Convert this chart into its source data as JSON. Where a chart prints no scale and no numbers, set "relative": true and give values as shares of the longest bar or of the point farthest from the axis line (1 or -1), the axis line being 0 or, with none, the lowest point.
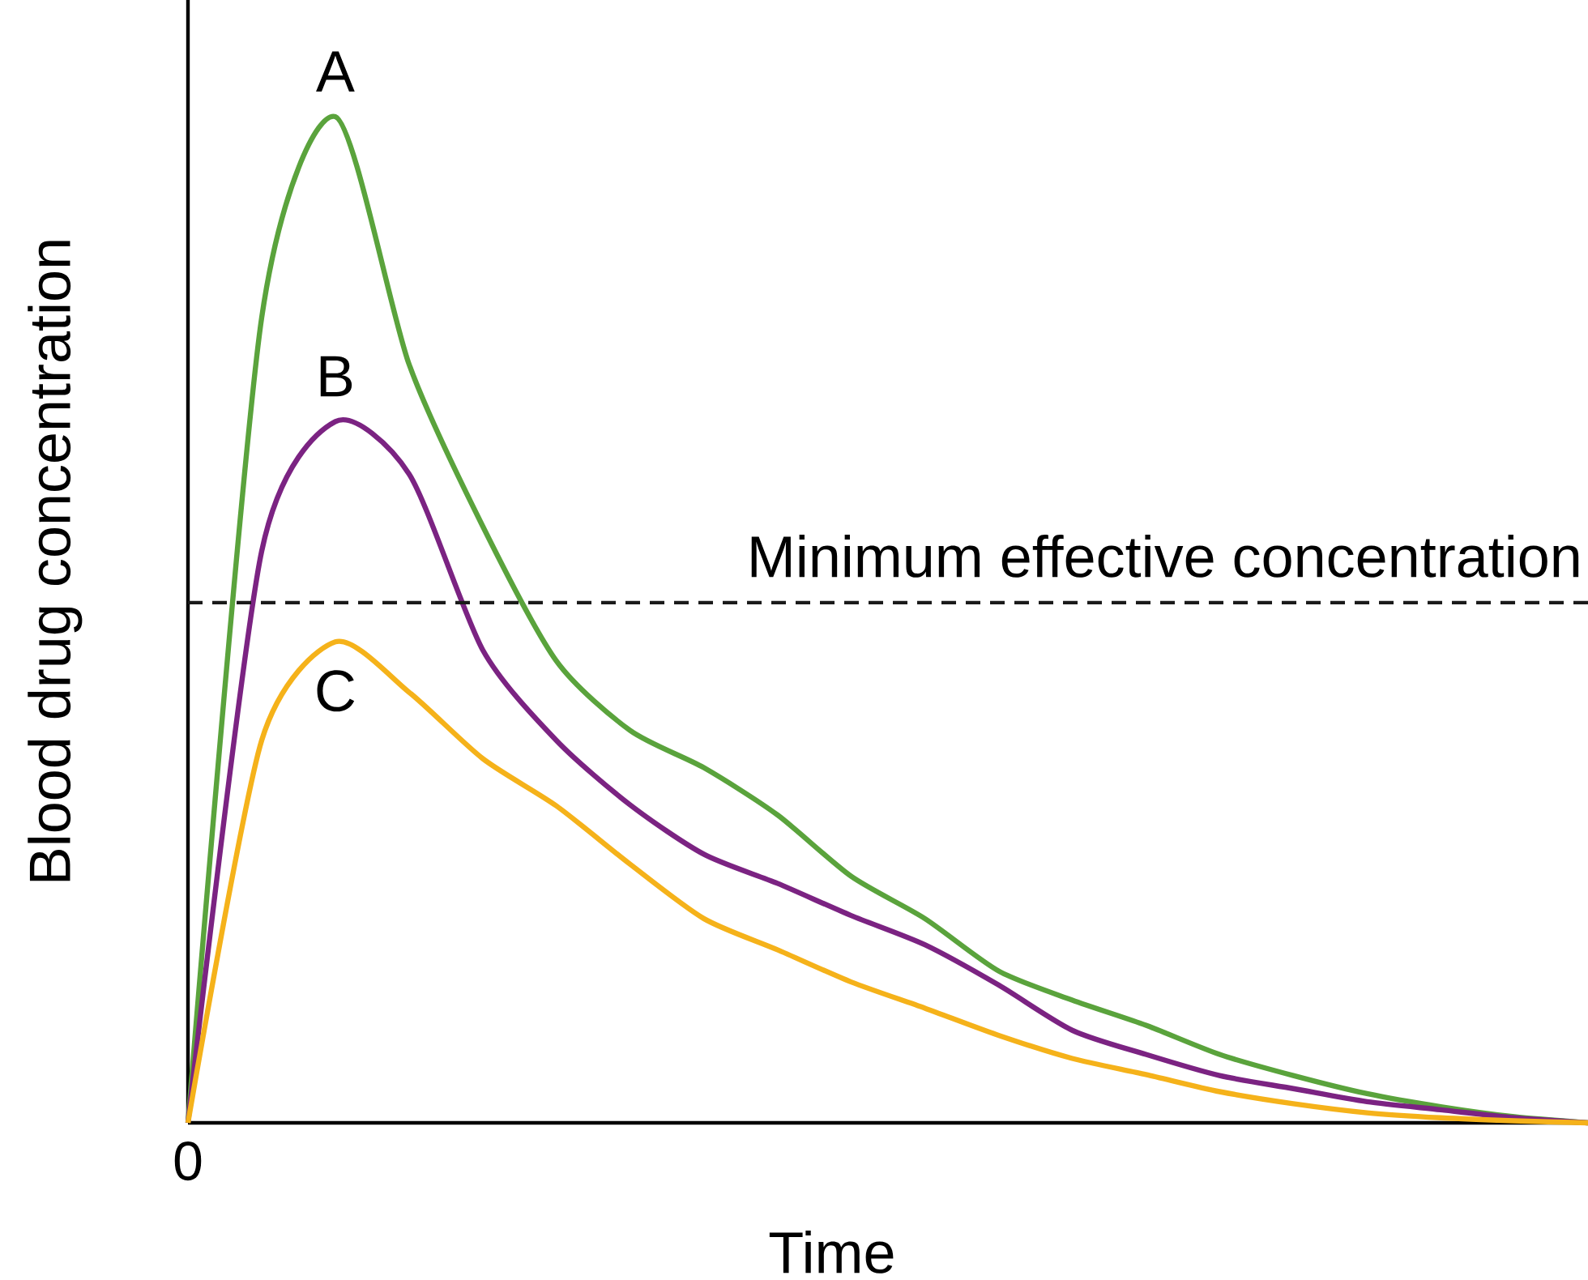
{
  "chart_data": {
    "type": "line",
    "relative": true,
    "xlabel": "Time",
    "ylabel": "Blood drug concentration",
    "marker": "none",
    "annotations": [
      "0"
    ],
    "categories": [
      null,
      null,
      null,
      null,
      null,
      null,
      null,
      null,
      null,
      null,
      null,
      null,
      null,
      null,
      null,
      null,
      null,
      null,
      null,
      null
    ],
    "series": [
      {
        "name": "A",
        "color": "#5aa33c",
        "values": [
          0,
          0.8,
          1.0,
          0.754,
          0.593,
          0.459,
          0.39,
          0.353,
          0.306,
          0.245,
          0.203,
          0.151,
          0.122,
          0.097,
          0.068,
          0.047,
          0.029,
          0.016,
          0.006,
          0
        ]
      },
      {
        "name": "B",
        "color": "#7b2382",
        "values": [
          0,
          0.568,
          0.697,
          0.645,
          0.47,
          0.38,
          0.316,
          0.267,
          0.238,
          0.206,
          0.177,
          0.137,
          0.092,
          0.068,
          0.047,
          0.034,
          0.021,
          0.013,
          0.005,
          0
        ]
      },
      {
        "name": "C",
        "color": "#f5b21a",
        "values": [
          0,
          0.38,
          0.478,
          0.428,
          0.362,
          0.315,
          0.257,
          0.203,
          0.172,
          0.14,
          0.114,
          0.087,
          0.064,
          0.048,
          0.031,
          0.019,
          0.01,
          0.005,
          0.002,
          0
        ]
      }
    ],
    "ref_lines": [
      {
        "axis": "y",
        "value": 0.517,
        "label": "Minimum effective concentration",
        "color": "#1a1a1a",
        "line_style": "dashed"
      }
    ]
  }
}
